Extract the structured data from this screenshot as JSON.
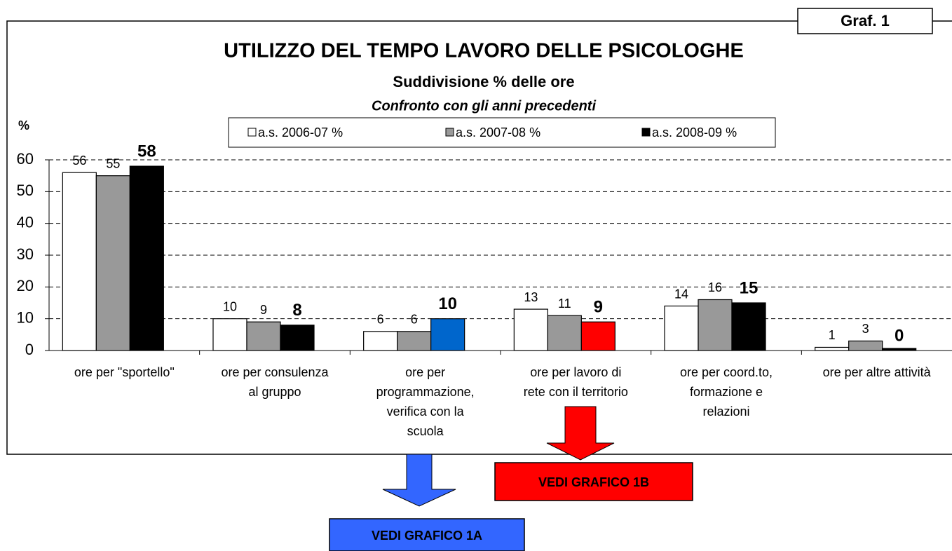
{
  "chart_data": {
    "type": "bar",
    "badge": "Graf. 1",
    "title": "UTILIZZO DEL TEMPO LAVORO DELLE PSICOLOGHE",
    "subtitle": "Suddivisione % delle ore",
    "subtitle2": "Confronto con gli anni precedenti",
    "ylabel": "%",
    "categories": [
      "ore per \"sportello\"",
      "ore per consulenza\nal gruppo",
      "ore per\nprogrammazione,\nverifica con la\nscuola",
      "ore per lavoro di\nrete con il territorio",
      "ore per coord.to,\nformazione e\nrelazioni",
      "ore per altre attività"
    ],
    "series": [
      {
        "name": "a.s. 2006-07 %",
        "color": "#ffffff",
        "values": [
          56,
          10,
          6,
          13,
          14,
          1
        ]
      },
      {
        "name": "a.s. 2007-08 %",
        "color": "#999999",
        "values": [
          55,
          9,
          6,
          11,
          16,
          3
        ]
      },
      {
        "name": "a.s. 2008-09 %",
        "color": "#000000",
        "colors": [
          "#000000",
          "#000000",
          "#0066cc",
          "#ff0000",
          "#000000",
          "#000000"
        ],
        "values": [
          58,
          8,
          10,
          9,
          15,
          0
        ]
      }
    ],
    "ylim": [
      0,
      60
    ],
    "yticks": [
      0,
      10,
      20,
      30,
      40,
      50,
      60
    ],
    "grid": true,
    "annotations": [
      {
        "text": "VEDI GRAFICO 1A",
        "color": "#3366ff"
      },
      {
        "text": "VEDI GRAFICO 1B",
        "color": "#ff0000"
      }
    ]
  }
}
